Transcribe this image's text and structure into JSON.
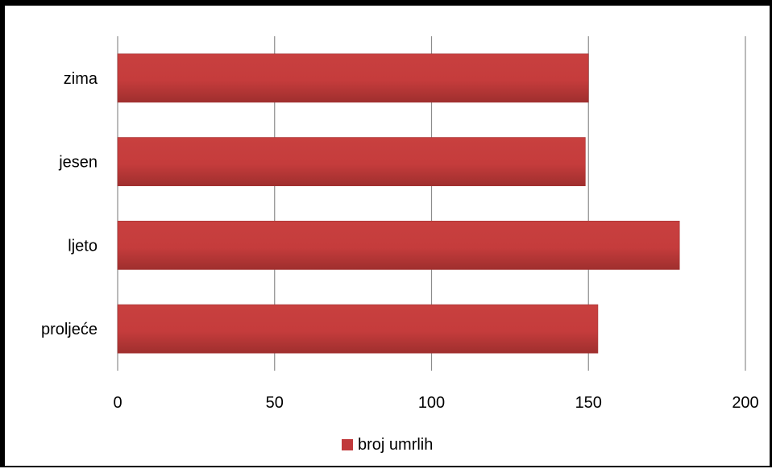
{
  "chart_data": {
    "type": "bar",
    "orientation": "horizontal",
    "categories": [
      "zima",
      "jesen",
      "ljeto",
      "proljeće"
    ],
    "series": [
      {
        "name": "broj umrlih",
        "values": [
          150,
          149,
          179,
          153
        ],
        "color": "#c0393b"
      }
    ],
    "x_ticks": [
      "0",
      "50",
      "100",
      "150",
      "200"
    ],
    "xlim": [
      0,
      200
    ],
    "title": "",
    "xlabel": "",
    "ylabel": "",
    "grid": "vertical",
    "legend": "bottom"
  }
}
